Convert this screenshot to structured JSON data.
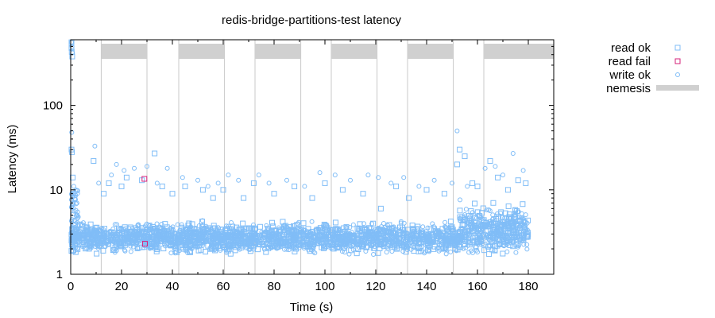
{
  "chart_data": {
    "type": "scatter",
    "title": "redis-bridge-partitions-test latency",
    "xlabel": "Time (s)",
    "ylabel": "Latency (ms)",
    "xlim": [
      0,
      190
    ],
    "ylim": [
      1,
      600
    ],
    "y_scale": "log",
    "x_ticks": [
      0,
      20,
      40,
      60,
      80,
      100,
      120,
      140,
      160,
      180
    ],
    "y_ticks": [
      1,
      10,
      100
    ],
    "grid": false,
    "legend_position": "outside-right",
    "colors": {
      "ok": "#80bdf7",
      "fail": "#d6207a",
      "nemesis": "#d0d0d0",
      "nemesis_line": "#c8c8c8"
    },
    "legend": [
      "read ok",
      "read fail",
      "write ok",
      "nemesis"
    ],
    "nemesis_intervals": [
      [
        12,
        30
      ],
      [
        42.5,
        60.5
      ],
      [
        72.5,
        90.5
      ],
      [
        102.5,
        120.5
      ],
      [
        132.5,
        150.5
      ],
      [
        162.5,
        190
      ]
    ],
    "nemesis_lines": [
      12,
      30,
      42.5,
      60.5,
      72.5,
      90.5,
      102.5,
      120.5,
      132.5,
      150.5,
      162.5
    ],
    "series": [
      {
        "name": "read ok",
        "marker": "square",
        "points": [
          [
            0.2,
            560
          ],
          [
            0.3,
            480
          ],
          [
            0.4,
            430
          ],
          [
            0.6,
            380
          ],
          [
            0.3,
            30
          ],
          [
            0.5,
            28
          ],
          [
            0.8,
            14
          ],
          [
            1.0,
            9
          ],
          [
            1.5,
            8
          ],
          [
            9,
            22
          ],
          [
            13,
            9
          ],
          [
            15,
            12
          ],
          [
            20,
            11
          ],
          [
            22,
            14
          ],
          [
            28,
            13
          ],
          [
            33,
            27
          ],
          [
            36,
            11
          ],
          [
            40,
            9
          ],
          [
            45,
            11
          ],
          [
            52,
            10
          ],
          [
            56,
            8
          ],
          [
            60,
            10
          ],
          [
            68,
            8
          ],
          [
            72,
            12
          ],
          [
            80,
            9
          ],
          [
            88,
            11
          ],
          [
            95,
            8
          ],
          [
            100,
            12
          ],
          [
            107,
            10
          ],
          [
            115,
            9
          ],
          [
            122,
            6
          ],
          [
            128,
            11
          ],
          [
            133,
            8
          ],
          [
            140,
            10
          ],
          [
            147,
            9
          ],
          [
            152,
            20
          ],
          [
            153,
            30
          ],
          [
            155,
            25
          ],
          [
            158,
            12
          ],
          [
            160,
            11
          ],
          [
            165,
            22
          ],
          [
            168,
            14
          ],
          [
            172,
            10
          ],
          [
            176,
            13
          ],
          [
            179,
            12
          ]
        ]
      },
      {
        "name": "read fail",
        "marker": "square",
        "points": [
          [
            29,
            13.5
          ],
          [
            29.2,
            2.3
          ]
        ]
      },
      {
        "name": "write ok",
        "marker": "circle",
        "points": [
          [
            0.3,
            560
          ],
          [
            0.5,
            500
          ],
          [
            0.7,
            420
          ],
          [
            0.4,
            48
          ],
          [
            1.2,
            11
          ],
          [
            9.5,
            33
          ],
          [
            11,
            12
          ],
          [
            16,
            15
          ],
          [
            18,
            20
          ],
          [
            21,
            17
          ],
          [
            25,
            18
          ],
          [
            30,
            19
          ],
          [
            34,
            12
          ],
          [
            38,
            18
          ],
          [
            44,
            14
          ],
          [
            50,
            13
          ],
          [
            54,
            11
          ],
          [
            58,
            12
          ],
          [
            62,
            15
          ],
          [
            66,
            13
          ],
          [
            74,
            15
          ],
          [
            78,
            12
          ],
          [
            85,
            13
          ],
          [
            92,
            11
          ],
          [
            98,
            16
          ],
          [
            104,
            15
          ],
          [
            110,
            13
          ],
          [
            117,
            15
          ],
          [
            121,
            14
          ],
          [
            126,
            12
          ],
          [
            131,
            14
          ],
          [
            137,
            11
          ],
          [
            143,
            13
          ],
          [
            150,
            12
          ],
          [
            152,
            50
          ],
          [
            156,
            11
          ],
          [
            163,
            18
          ],
          [
            167,
            19
          ],
          [
            170,
            15
          ],
          [
            174,
            27
          ],
          [
            178,
            17
          ]
        ]
      }
    ],
    "dense_band": {
      "x_range": [
        0,
        180
      ],
      "y_normal": [
        1.6,
        4.5
      ],
      "y_wide_after": 153,
      "y_wide": [
        1.4,
        8.0
      ]
    }
  }
}
